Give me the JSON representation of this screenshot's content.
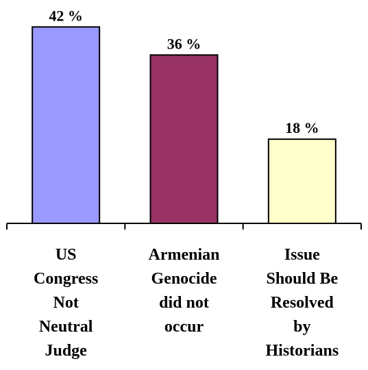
{
  "chart_data": {
    "type": "bar",
    "categories": [
      [
        "US",
        "Congress",
        "Not",
        "Neutral",
        "Judge"
      ],
      [
        "Armenian",
        "Genocide",
        "did not",
        "occur"
      ],
      [
        "Issue",
        "Should Be",
        "Resolved",
        "by",
        "Historians"
      ]
    ],
    "values": [
      42,
      36,
      18
    ],
    "data_labels": [
      "42 %",
      "36 %",
      "18 %"
    ],
    "colors": [
      "#9999ff",
      "#993366",
      "#ffffcc"
    ],
    "ylim": [
      0,
      46
    ],
    "title": "",
    "xlabel": "",
    "ylabel": "",
    "grid": false,
    "legend": "none"
  }
}
